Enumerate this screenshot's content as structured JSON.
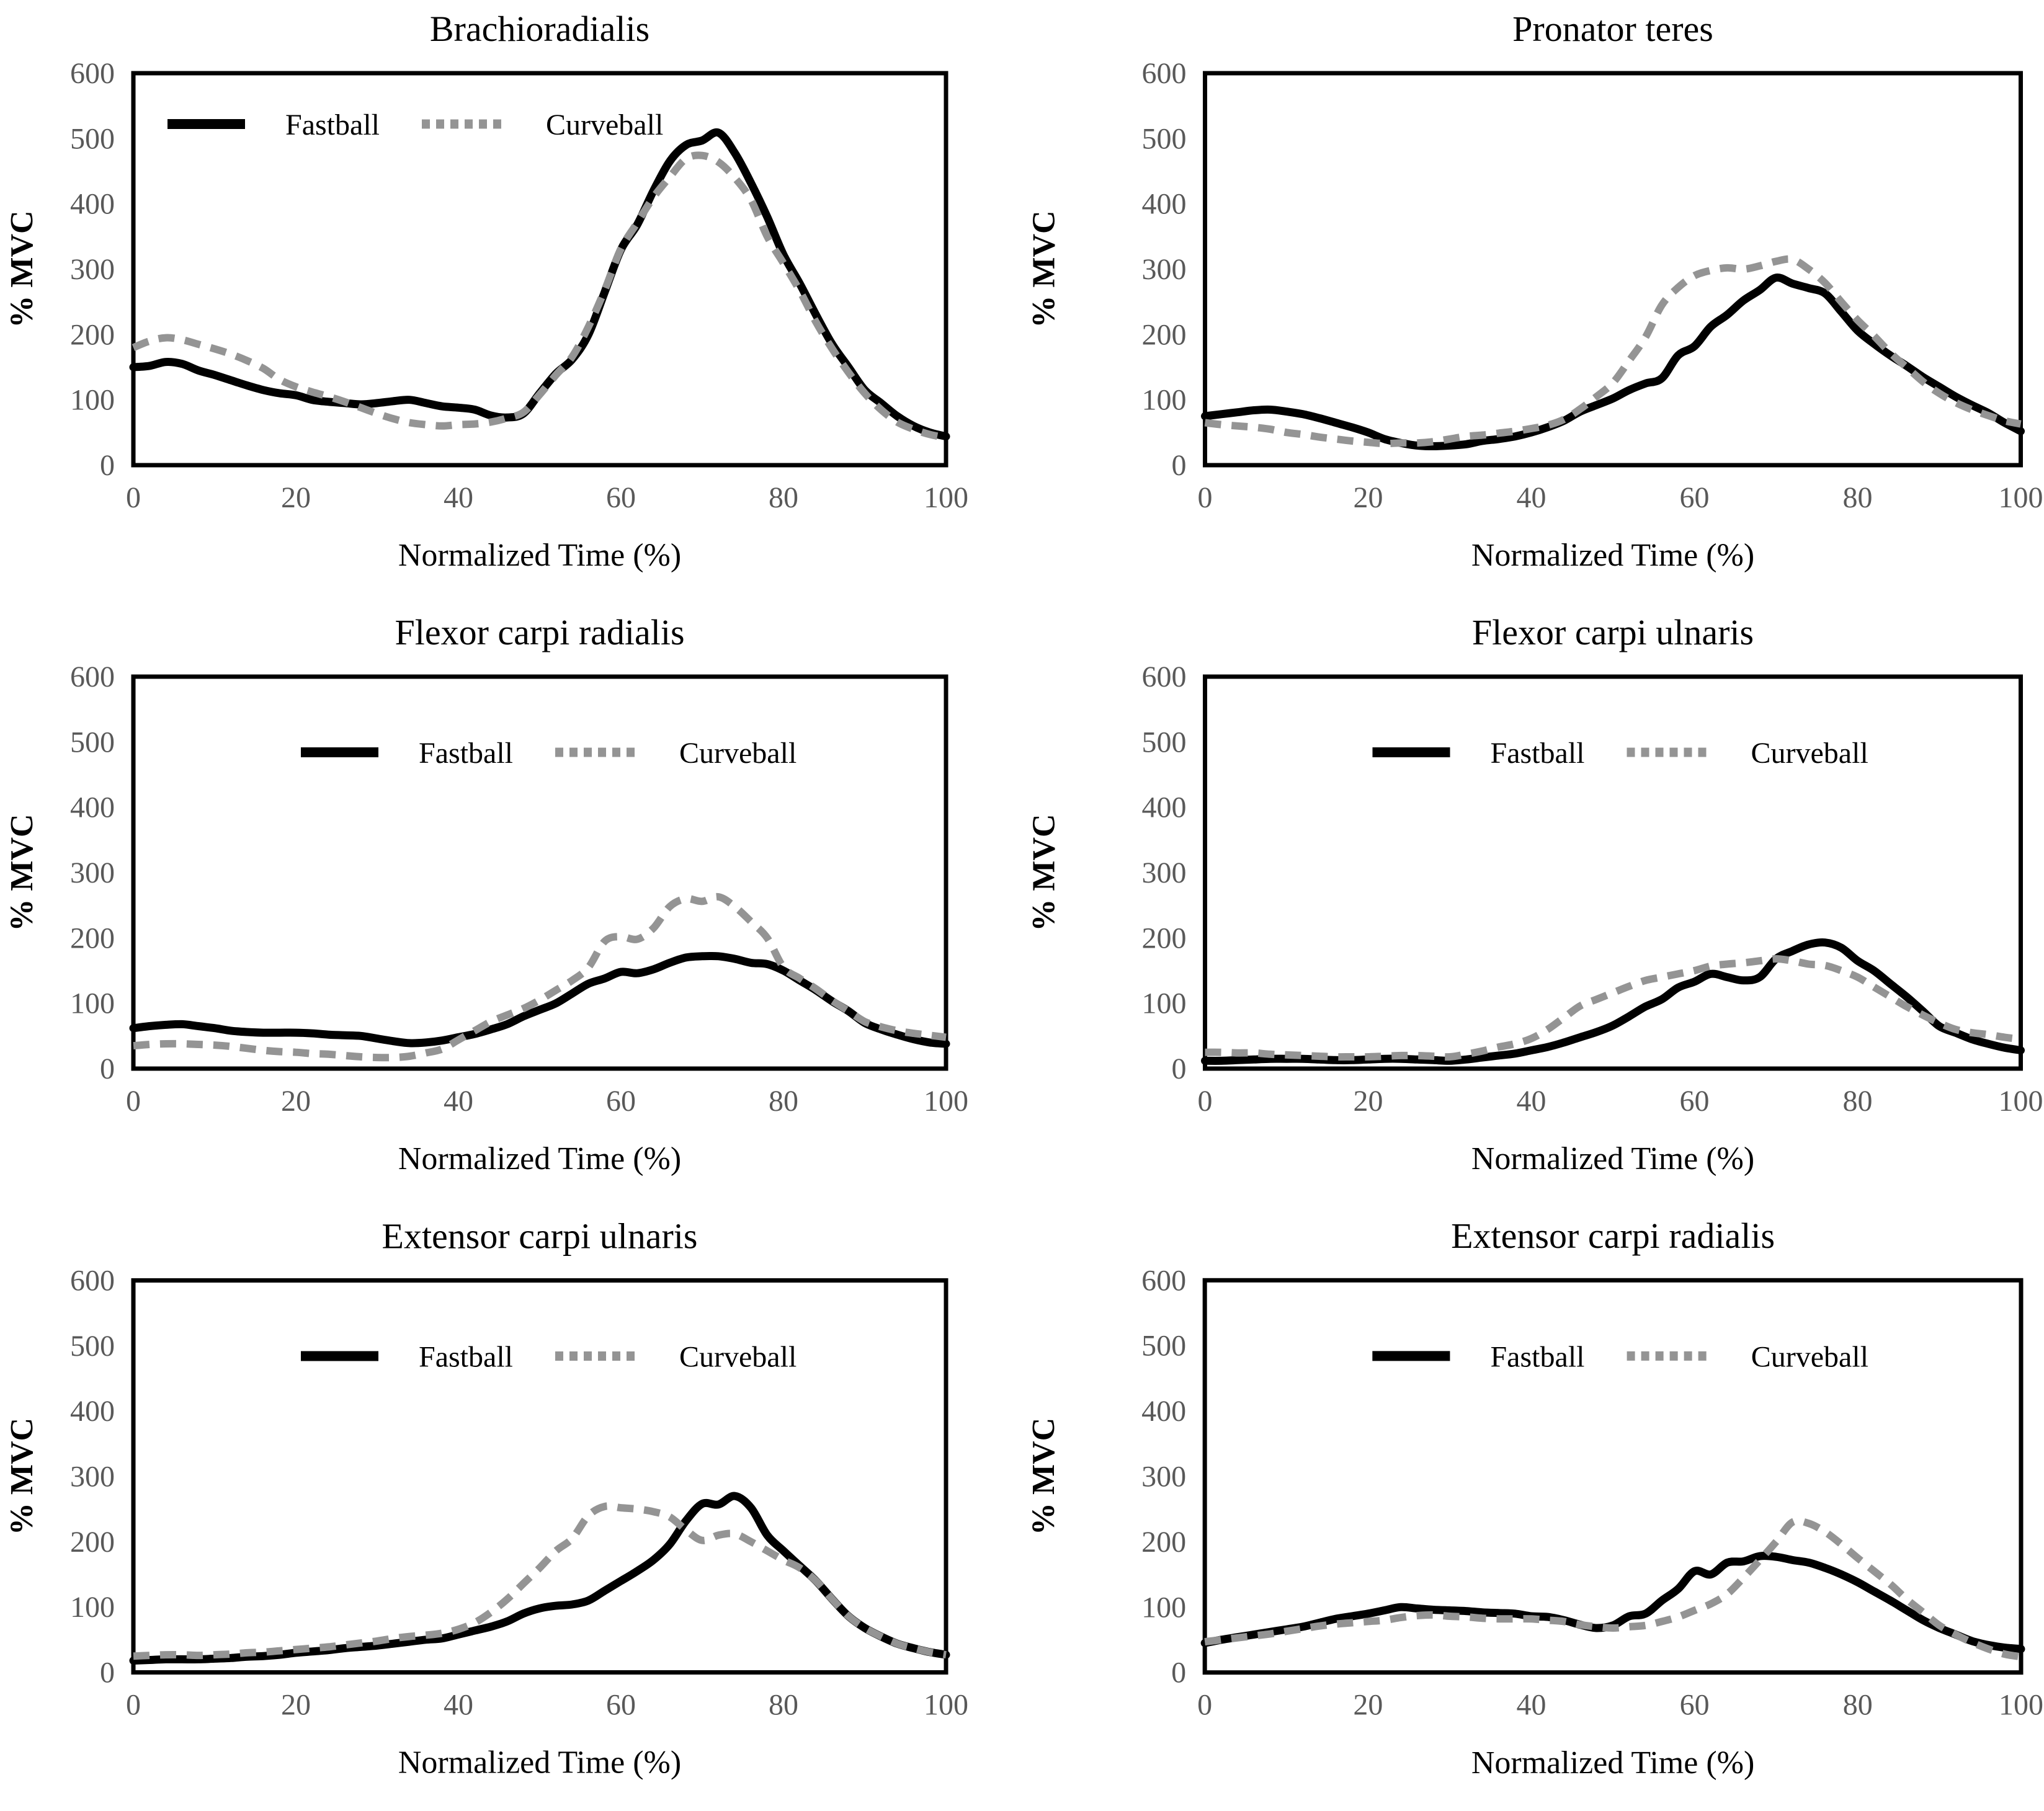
{
  "figure": {
    "legend": {
      "fastball_label": "Fastball",
      "curveball_label": "Curveball"
    },
    "colors": {
      "fastball": "#000000",
      "curveball": "#949494",
      "tick_label": "#595959",
      "text": "#000000",
      "frame": "#000000",
      "background": "#ffffff"
    }
  },
  "chart_data": [
    {
      "type": "line",
      "title": "Brachioradialis",
      "xlabel": "Normalized Time (%)",
      "ylabel": "% MVC",
      "xlim": [
        0,
        100
      ],
      "ylim": [
        0,
        600
      ],
      "xticks": [
        0,
        20,
        40,
        60,
        80,
        100
      ],
      "yticks": [
        0,
        100,
        200,
        300,
        400,
        500,
        600
      ],
      "grid": false,
      "legend": {
        "show": true,
        "position": "upper-left"
      },
      "x": [
        0,
        2,
        4,
        6,
        8,
        10,
        12,
        14,
        16,
        18,
        20,
        22,
        24,
        26,
        28,
        30,
        32,
        34,
        36,
        38,
        40,
        42,
        44,
        46,
        48,
        50,
        52,
        54,
        56,
        58,
        60,
        62,
        64,
        66,
        68,
        70,
        72,
        74,
        76,
        78,
        80,
        82,
        84,
        86,
        88,
        90,
        92,
        94,
        96,
        98,
        100
      ],
      "series": [
        {
          "name": "Fastball",
          "style": "solid",
          "values": [
            150,
            152,
            158,
            155,
            145,
            138,
            130,
            122,
            115,
            110,
            107,
            100,
            97,
            95,
            93,
            95,
            98,
            100,
            95,
            90,
            88,
            85,
            76,
            73,
            79,
            110,
            140,
            162,
            200,
            265,
            330,
            368,
            420,
            465,
            490,
            497,
            509,
            478,
            432,
            380,
            322,
            278,
            230,
            185,
            150,
            115,
            95,
            75,
            60,
            50,
            44
          ]
        },
        {
          "name": "Curveball",
          "style": "dashed",
          "values": [
            180,
            190,
            195,
            192,
            185,
            178,
            170,
            160,
            148,
            131,
            120,
            112,
            105,
            97,
            88,
            79,
            71,
            65,
            62,
            60,
            62,
            63,
            66,
            72,
            81,
            108,
            138,
            166,
            212,
            268,
            331,
            371,
            410,
            441,
            469,
            474,
            464,
            440,
            406,
            350,
            309,
            267,
            219,
            178,
            142,
            110,
            85,
            66,
            55,
            47,
            42
          ]
        }
      ]
    },
    {
      "type": "line",
      "title": "Pronator teres",
      "xlabel": "Normalized Time (%)",
      "ylabel": "% MVC",
      "xlim": [
        0,
        100
      ],
      "ylim": [
        0,
        600
      ],
      "xticks": [
        0,
        20,
        40,
        60,
        80,
        100
      ],
      "yticks": [
        0,
        100,
        200,
        300,
        400,
        500,
        600
      ],
      "grid": false,
      "legend": {
        "show": false,
        "position": "none"
      },
      "x": [
        0,
        2,
        4,
        6,
        8,
        10,
        12,
        14,
        16,
        18,
        20,
        22,
        24,
        26,
        28,
        30,
        32,
        34,
        36,
        38,
        40,
        42,
        44,
        46,
        48,
        50,
        52,
        54,
        56,
        58,
        60,
        62,
        64,
        66,
        68,
        70,
        72,
        74,
        76,
        78,
        80,
        82,
        84,
        86,
        88,
        90,
        92,
        94,
        96,
        98,
        100
      ],
      "series": [
        {
          "name": "Fastball",
          "style": "solid",
          "values": [
            75,
            78,
            81,
            84,
            85,
            82,
            78,
            72,
            65,
            58,
            50,
            40,
            34,
            30,
            29,
            30,
            32,
            37,
            40,
            44,
            50,
            58,
            68,
            82,
            92,
            102,
            115,
            125,
            133,
            168,
            182,
            212,
            230,
            252,
            268,
            287,
            278,
            271,
            263,
            235,
            206,
            186,
            168,
            152,
            135,
            120,
            105,
            92,
            80,
            65,
            52
          ]
        },
        {
          "name": "Curveball",
          "style": "dashed",
          "values": [
            65,
            62,
            60,
            58,
            55,
            50,
            47,
            43,
            40,
            37,
            35,
            33,
            34,
            34,
            36,
            40,
            44,
            46,
            49,
            52,
            56,
            61,
            70,
            86,
            105,
            126,
            160,
            196,
            245,
            272,
            290,
            298,
            302,
            300,
            305,
            312,
            315,
            300,
            279,
            250,
            222,
            198,
            172,
            150,
            128,
            110,
            96,
            85,
            76,
            68,
            63
          ]
        }
      ]
    },
    {
      "type": "line",
      "title": "Flexor carpi radialis",
      "xlabel": "Normalized Time (%)",
      "ylabel": "% MVC",
      "xlim": [
        0,
        100
      ],
      "ylim": [
        0,
        600
      ],
      "xticks": [
        0,
        20,
        40,
        60,
        80,
        100
      ],
      "yticks": [
        0,
        100,
        200,
        300,
        400,
        500,
        600
      ],
      "grid": false,
      "legend": {
        "show": true,
        "position": "upper-center"
      },
      "x": [
        0,
        2,
        4,
        6,
        8,
        10,
        12,
        14,
        16,
        18,
        20,
        22,
        24,
        26,
        28,
        30,
        32,
        34,
        36,
        38,
        40,
        42,
        44,
        46,
        48,
        50,
        52,
        54,
        56,
        58,
        60,
        62,
        64,
        66,
        68,
        70,
        72,
        74,
        76,
        78,
        80,
        82,
        84,
        86,
        88,
        90,
        92,
        94,
        96,
        98,
        100
      ],
      "series": [
        {
          "name": "Fastball",
          "style": "solid",
          "values": [
            62,
            65,
            67,
            68,
            65,
            62,
            58,
            56,
            55,
            55,
            55,
            54,
            52,
            51,
            50,
            46,
            42,
            39,
            40,
            43,
            48,
            53,
            60,
            68,
            80,
            90,
            100,
            115,
            130,
            138,
            148,
            146,
            152,
            162,
            170,
            172,
            172,
            168,
            162,
            160,
            150,
            135,
            120,
            103,
            88,
            70,
            60,
            52,
            45,
            40,
            38
          ]
        },
        {
          "name": "Curveball",
          "style": "dashed",
          "values": [
            35,
            37,
            38,
            38,
            37,
            36,
            34,
            31,
            28,
            26,
            25,
            23,
            22,
            20,
            18,
            17,
            17,
            19,
            24,
            30,
            44,
            58,
            72,
            82,
            92,
            105,
            120,
            135,
            155,
            195,
            202,
            198,
            215,
            248,
            260,
            256,
            263,
            248,
            225,
            200,
            155,
            138,
            122,
            104,
            88,
            72,
            64,
            58,
            54,
            51,
            48
          ]
        }
      ]
    },
    {
      "type": "line",
      "title": "Flexor carpi ulnaris",
      "xlabel": "Normalized Time (%)",
      "ylabel": "% MVC",
      "xlim": [
        0,
        100
      ],
      "ylim": [
        0,
        600
      ],
      "xticks": [
        0,
        20,
        40,
        60,
        80,
        100
      ],
      "yticks": [
        0,
        100,
        200,
        300,
        400,
        500,
        600
      ],
      "grid": false,
      "legend": {
        "show": true,
        "position": "upper-center"
      },
      "x": [
        0,
        2,
        4,
        6,
        8,
        10,
        12,
        14,
        16,
        18,
        20,
        22,
        24,
        26,
        28,
        30,
        32,
        34,
        36,
        38,
        40,
        42,
        44,
        46,
        48,
        50,
        52,
        54,
        56,
        58,
        60,
        62,
        64,
        66,
        68,
        70,
        72,
        74,
        76,
        78,
        80,
        82,
        84,
        86,
        88,
        90,
        92,
        94,
        96,
        98,
        100
      ],
      "series": [
        {
          "name": "Fastball",
          "style": "solid",
          "values": [
            12,
            12,
            13,
            14,
            15,
            15,
            15,
            14,
            13,
            13,
            14,
            15,
            15,
            14,
            13,
            12,
            14,
            17,
            20,
            23,
            28,
            33,
            40,
            48,
            56,
            66,
            80,
            95,
            106,
            124,
            133,
            145,
            140,
            135,
            140,
            168,
            180,
            190,
            193,
            185,
            165,
            150,
            130,
            110,
            88,
            65,
            55,
            45,
            38,
            32,
            28
          ]
        },
        {
          "name": "Curveball",
          "style": "dashed",
          "values": [
            25,
            25,
            24,
            24,
            22,
            21,
            20,
            19,
            18,
            18,
            18,
            19,
            20,
            20,
            19,
            18,
            22,
            27,
            33,
            38,
            46,
            60,
            78,
            96,
            106,
            116,
            126,
            135,
            140,
            145,
            150,
            157,
            160,
            162,
            165,
            168,
            165,
            160,
            158,
            150,
            140,
            125,
            110,
            95,
            82,
            70,
            60,
            55,
            52,
            48,
            45
          ]
        }
      ]
    },
    {
      "type": "line",
      "title": "Extensor carpi ulnaris",
      "xlabel": "Normalized Time (%)",
      "ylabel": "% MVC",
      "xlim": [
        0,
        100
      ],
      "ylim": [
        0,
        600
      ],
      "xticks": [
        0,
        20,
        40,
        60,
        80,
        100
      ],
      "yticks": [
        0,
        100,
        200,
        300,
        400,
        500,
        600
      ],
      "grid": false,
      "legend": {
        "show": true,
        "position": "upper-center"
      },
      "x": [
        0,
        2,
        4,
        6,
        8,
        10,
        12,
        14,
        16,
        18,
        20,
        22,
        24,
        26,
        28,
        30,
        32,
        34,
        36,
        38,
        40,
        42,
        44,
        46,
        48,
        50,
        52,
        54,
        56,
        58,
        60,
        62,
        64,
        66,
        68,
        70,
        72,
        74,
        76,
        78,
        80,
        82,
        84,
        86,
        88,
        90,
        92,
        94,
        96,
        98,
        100
      ],
      "series": [
        {
          "name": "Fastball",
          "style": "solid",
          "values": [
            18,
            19,
            20,
            20,
            20,
            21,
            22,
            24,
            25,
            27,
            30,
            32,
            34,
            37,
            39,
            41,
            44,
            47,
            50,
            52,
            58,
            64,
            70,
            78,
            90,
            98,
            102,
            104,
            110,
            125,
            140,
            155,
            172,
            196,
            232,
            258,
            257,
            270,
            252,
            210,
            186,
            163,
            140,
            112,
            86,
            68,
            55,
            44,
            37,
            31,
            27
          ]
        },
        {
          "name": "Curveball",
          "style": "dashed",
          "values": [
            25,
            26,
            27,
            27,
            26,
            27,
            28,
            30,
            31,
            33,
            35,
            37,
            39,
            42,
            45,
            48,
            52,
            55,
            57,
            60,
            66,
            76,
            92,
            112,
            136,
            160,
            186,
            205,
            240,
            254,
            252,
            250,
            246,
            238,
            218,
            202,
            210,
            212,
            200,
            186,
            172,
            160,
            140,
            112,
            86,
            68,
            55,
            44,
            37,
            31,
            27
          ]
        }
      ]
    },
    {
      "type": "line",
      "title": "Extensor carpi radialis",
      "xlabel": "Normalized Time (%)",
      "ylabel": "% MVC",
      "xlim": [
        0,
        100
      ],
      "ylim": [
        0,
        600
      ],
      "xticks": [
        0,
        20,
        40,
        60,
        80,
        100
      ],
      "yticks": [
        0,
        100,
        200,
        300,
        400,
        500,
        600
      ],
      "grid": false,
      "legend": {
        "show": true,
        "position": "upper-center"
      },
      "x": [
        0,
        2,
        4,
        6,
        8,
        10,
        12,
        14,
        16,
        18,
        20,
        22,
        24,
        26,
        28,
        30,
        32,
        34,
        36,
        38,
        40,
        42,
        44,
        46,
        48,
        50,
        52,
        54,
        56,
        58,
        60,
        62,
        64,
        66,
        68,
        70,
        72,
        74,
        76,
        78,
        80,
        82,
        84,
        86,
        88,
        90,
        92,
        94,
        96,
        98,
        100
      ],
      "series": [
        {
          "name": "Fastball",
          "style": "solid",
          "values": [
            45,
            50,
            54,
            58,
            62,
            66,
            70,
            76,
            82,
            86,
            90,
            95,
            100,
            98,
            96,
            95,
            94,
            92,
            91,
            90,
            86,
            85,
            80,
            73,
            68,
            72,
            86,
            90,
            110,
            128,
            155,
            150,
            168,
            170,
            178,
            177,
            172,
            168,
            160,
            150,
            138,
            124,
            110,
            95,
            80,
            68,
            58,
            48,
            42,
            38,
            36
          ]
        },
        {
          "name": "Curveball",
          "style": "dashed",
          "values": [
            47,
            50,
            53,
            56,
            59,
            63,
            67,
            71,
            74,
            76,
            78,
            80,
            84,
            87,
            88,
            86,
            85,
            83,
            82,
            82,
            82,
            80,
            78,
            73,
            70,
            68,
            70,
            72,
            78,
            85,
            95,
            105,
            120,
            145,
            172,
            200,
            230,
            228,
            215,
            196,
            175,
            155,
            135,
            112,
            92,
            72,
            58,
            46,
            36,
            28,
            24
          ]
        }
      ]
    }
  ]
}
